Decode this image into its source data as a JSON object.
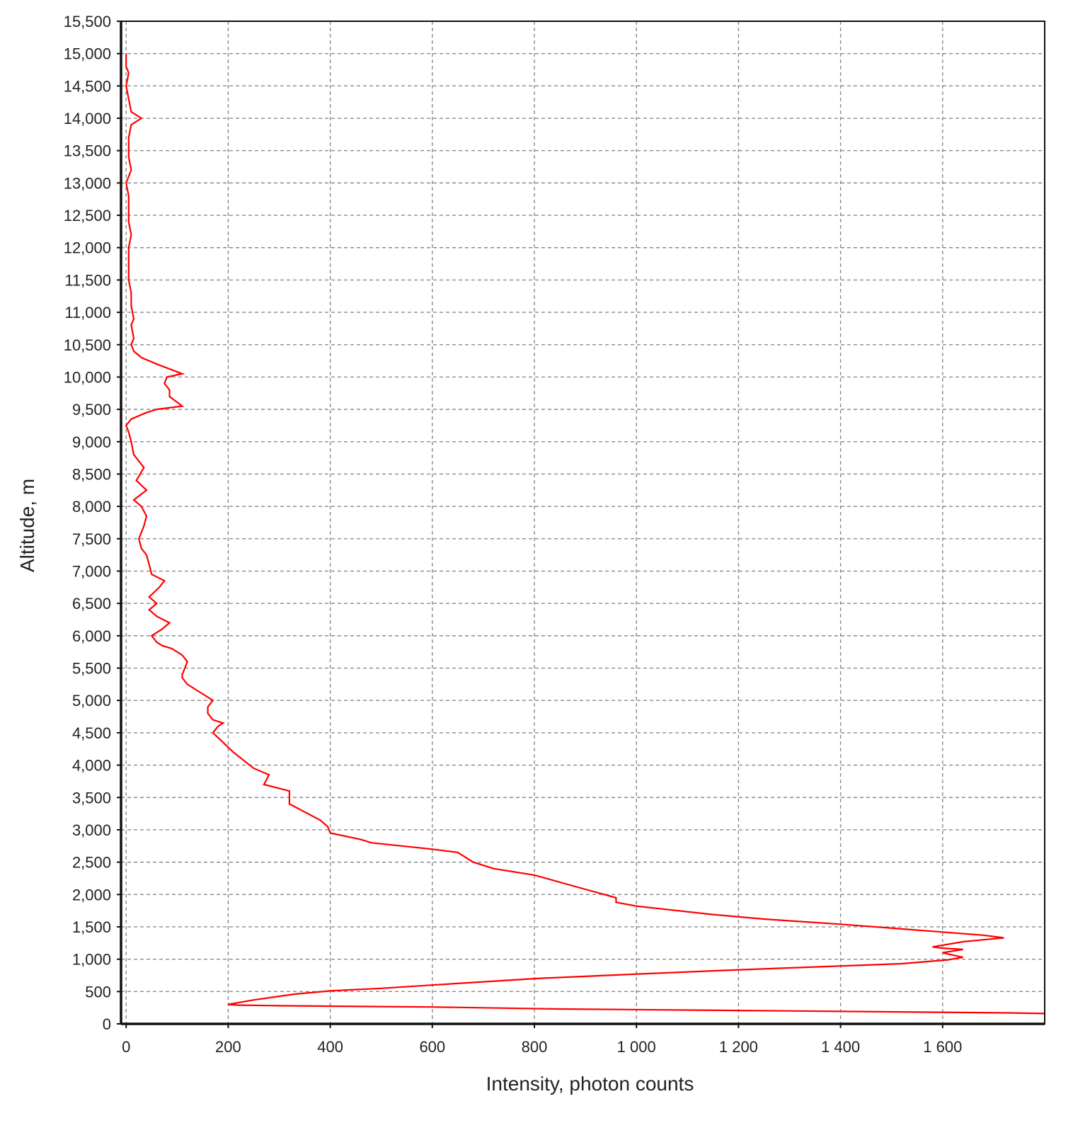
{
  "chart_data": {
    "type": "line",
    "title": "",
    "xlabel": "Intensity, photon counts",
    "ylabel": "Altitude, m",
    "xlim": [
      -10,
      1800
    ],
    "ylim": [
      0,
      15500
    ],
    "x_ticks": [
      0,
      200,
      400,
      600,
      800,
      1000,
      1200,
      1400,
      1600
    ],
    "x_tick_labels": [
      "0",
      "200",
      "400",
      "600",
      "800",
      "1 000",
      "1 200",
      "1 400",
      "1 600"
    ],
    "y_ticks": [
      0,
      500,
      1000,
      1500,
      2000,
      2500,
      3000,
      3500,
      4000,
      4500,
      5000,
      5500,
      6000,
      6500,
      7000,
      7500,
      8000,
      8500,
      9000,
      9500,
      10000,
      10500,
      11000,
      11500,
      12000,
      12500,
      13000,
      13500,
      14000,
      14500,
      15000,
      15500
    ],
    "y_tick_labels": [
      "0",
      "500",
      "1,000",
      "1,500",
      "2,000",
      "2,500",
      "3,000",
      "3,500",
      "4,000",
      "4,500",
      "5,000",
      "5,500",
      "6,000",
      "6,500",
      "7,000",
      "7,500",
      "8,000",
      "8,500",
      "9,000",
      "9,500",
      "10,000",
      "10,500",
      "11,000",
      "11,500",
      "12,000",
      "12,500",
      "13,000",
      "13,500",
      "14,000",
      "14,500",
      "15,000",
      "15,500"
    ],
    "grid": true,
    "grid_style": "dashed",
    "line_color": "#ff0000",
    "series": [
      {
        "points": [
          [
            1800,
            160
          ],
          [
            1730,
            170
          ],
          [
            1300,
            200
          ],
          [
            850,
            230
          ],
          [
            600,
            260
          ],
          [
            300,
            280
          ],
          [
            220,
            290
          ],
          [
            200,
            300
          ],
          [
            250,
            370
          ],
          [
            330,
            460
          ],
          [
            400,
            510
          ],
          [
            500,
            550
          ],
          [
            600,
            600
          ],
          [
            700,
            650
          ],
          [
            800,
            700
          ],
          [
            970,
            760
          ],
          [
            1150,
            820
          ],
          [
            1350,
            880
          ],
          [
            1520,
            930
          ],
          [
            1610,
            990
          ],
          [
            1640,
            1030
          ],
          [
            1610,
            1080
          ],
          [
            1600,
            1100
          ],
          [
            1640,
            1150
          ],
          [
            1600,
            1170
          ],
          [
            1580,
            1190
          ],
          [
            1640,
            1270
          ],
          [
            1720,
            1330
          ],
          [
            1680,
            1370
          ],
          [
            1600,
            1420
          ],
          [
            1400,
            1540
          ],
          [
            1250,
            1620
          ],
          [
            1150,
            1690
          ],
          [
            1000,
            1820
          ],
          [
            960,
            1880
          ],
          [
            960,
            1950
          ],
          [
            900,
            2080
          ],
          [
            800,
            2300
          ],
          [
            720,
            2400
          ],
          [
            680,
            2500
          ],
          [
            650,
            2650
          ],
          [
            600,
            2700
          ],
          [
            480,
            2800
          ],
          [
            460,
            2850
          ],
          [
            400,
            2950
          ],
          [
            395,
            3050
          ],
          [
            380,
            3150
          ],
          [
            320,
            3400
          ],
          [
            320,
            3600
          ],
          [
            270,
            3700
          ],
          [
            280,
            3850
          ],
          [
            250,
            3950
          ],
          [
            210,
            4200
          ],
          [
            190,
            4350
          ],
          [
            170,
            4500
          ],
          [
            180,
            4600
          ],
          [
            190,
            4650
          ],
          [
            170,
            4700
          ],
          [
            160,
            4800
          ],
          [
            160,
            4900
          ],
          [
            170,
            5000
          ],
          [
            140,
            5150
          ],
          [
            120,
            5250
          ],
          [
            110,
            5350
          ],
          [
            110,
            5400
          ],
          [
            120,
            5600
          ],
          [
            110,
            5700
          ],
          [
            90,
            5800
          ],
          [
            70,
            5850
          ],
          [
            60,
            5900
          ],
          [
            50,
            6000
          ],
          [
            70,
            6100
          ],
          [
            85,
            6200
          ],
          [
            60,
            6300
          ],
          [
            45,
            6400
          ],
          [
            60,
            6500
          ],
          [
            45,
            6600
          ],
          [
            65,
            6750
          ],
          [
            75,
            6850
          ],
          [
            50,
            6950
          ],
          [
            45,
            7100
          ],
          [
            40,
            7250
          ],
          [
            30,
            7350
          ],
          [
            25,
            7500
          ],
          [
            35,
            7700
          ],
          [
            40,
            7850
          ],
          [
            30,
            8000
          ],
          [
            15,
            8100
          ],
          [
            40,
            8250
          ],
          [
            20,
            8400
          ],
          [
            35,
            8600
          ],
          [
            25,
            8700
          ],
          [
            15,
            8800
          ],
          [
            10,
            9000
          ],
          [
            5,
            9150
          ],
          [
            0,
            9250
          ],
          [
            10,
            9350
          ],
          [
            40,
            9450
          ],
          [
            60,
            9500
          ],
          [
            110,
            9550
          ],
          [
            85,
            9700
          ],
          [
            85,
            9800
          ],
          [
            75,
            9900
          ],
          [
            80,
            10000
          ],
          [
            110,
            10050
          ],
          [
            60,
            10200
          ],
          [
            30,
            10300
          ],
          [
            15,
            10400
          ],
          [
            10,
            10500
          ],
          [
            15,
            10600
          ],
          [
            10,
            10800
          ],
          [
            15,
            10900
          ],
          [
            10,
            11100
          ],
          [
            10,
            11300
          ],
          [
            5,
            11500
          ],
          [
            5,
            11800
          ],
          [
            5,
            12000
          ],
          [
            10,
            12200
          ],
          [
            5,
            12400
          ],
          [
            5,
            12600
          ],
          [
            5,
            12800
          ],
          [
            0,
            13000
          ],
          [
            10,
            13200
          ],
          [
            5,
            13400
          ],
          [
            5,
            13700
          ],
          [
            10,
            13900
          ],
          [
            30,
            14000
          ],
          [
            10,
            14100
          ],
          [
            5,
            14300
          ],
          [
            0,
            14500
          ],
          [
            5,
            14700
          ],
          [
            0,
            14800
          ],
          [
            0,
            15000
          ]
        ]
      }
    ]
  }
}
